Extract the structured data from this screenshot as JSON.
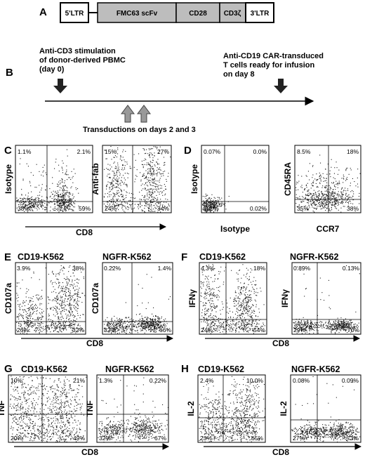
{
  "panel_labels": {
    "A": "A",
    "B": "B",
    "C": "C",
    "D": "D",
    "E": "E",
    "F": "F",
    "G": "G",
    "H": "H"
  },
  "construct": {
    "segments": [
      {
        "label": "5'LTR",
        "shade": "#ffffff"
      },
      {
        "label": "FMC63 scFv",
        "shade": "#bdbdbd"
      },
      {
        "label": "CD28",
        "shade": "#bdbdbd"
      },
      {
        "label": "CD3ζ",
        "shade": "#bdbdbd"
      },
      {
        "label": "3'LTR",
        "shade": "#ffffff"
      }
    ]
  },
  "timeline": {
    "stim_line1": "Anti-CD3 stimulation",
    "stim_line2": "of donor-derived PBMC",
    "stim_line3": "(day 0)",
    "infusion_line1": "Anti-CD19 CAR-transduced",
    "infusion_line2": "T cells ready for infusion",
    "infusion_line3": "on day 8",
    "transduction_label": "Transductions on days 2 and 3"
  },
  "flow_colors": {
    "dots": "#1a1a1a",
    "background": "#ffffff"
  },
  "panels": {
    "C": {
      "xlabel": "CD8",
      "plots": [
        {
          "ylabel": "Isotype",
          "ul": "1.1%",
          "ur": "2.1%",
          "ll": "38%",
          "lr": "59%"
        },
        {
          "ylabel": "Anti-fab",
          "ul": "15%",
          "ur": "27%",
          "ll": "24%",
          "lr": "34%"
        }
      ]
    },
    "D": {
      "plots": [
        {
          "ylabel": "Isotype",
          "xlabel": "Isotype",
          "ul": "0.07%",
          "ur": "0.0%",
          "ll": "100%",
          "lr": "0.02%"
        },
        {
          "ylabel": "CD45RA",
          "xlabel": "CCR7",
          "ul": "8.5%",
          "ur": "18%",
          "ll": "35%",
          "lr": "38%"
        }
      ]
    },
    "E": {
      "xlabel": "CD8",
      "plots": [
        {
          "title": "CD19-K562",
          "ylabel": "CD107a",
          "ul": "3.9%",
          "ur": "38%",
          "ll": "26%",
          "lr": "32%"
        },
        {
          "title": "NGFR-K562",
          "ylabel": "CD107a",
          "ul": "0.22%",
          "ur": "1.4%",
          "ll": "32%",
          "lr": "66%"
        }
      ]
    },
    "F": {
      "xlabel": "CD8",
      "plots": [
        {
          "title": "CD19-K562",
          "ylabel": "IFNγ",
          "ul": "4.3%",
          "ur": "18%",
          "ll": "24%",
          "lr": "54%"
        },
        {
          "title": "NGFR-K562",
          "ylabel": "IFNγ",
          "ul": "0.89%",
          "ur": "0.13%",
          "ll": "29%",
          "lr": "70%"
        }
      ]
    },
    "G": {
      "xlabel": "CD8",
      "plots": [
        {
          "title": "CD19-K562",
          "ylabel": "TNF",
          "ul": "10%",
          "ur": "21%",
          "ll": "20%",
          "lr": "49%"
        },
        {
          "title": "NGFR-K562",
          "ylabel": "TNF",
          "ul": "1.3%",
          "ur": "0.22%",
          "ll": "32%",
          "lr": "67%"
        }
      ]
    },
    "H": {
      "xlabel": "CD8",
      "plots": [
        {
          "title": "CD19-K562",
          "ylabel": "IL-2",
          "ul": "2.4%",
          "ur": "10.0%",
          "ll": "23%",
          "lr": "65%"
        },
        {
          "title": "NGFR-K562",
          "ylabel": "IL-2",
          "ul": "0.08%",
          "ur": "0.09%",
          "ll": "27%",
          "lr": "73%"
        }
      ]
    }
  }
}
